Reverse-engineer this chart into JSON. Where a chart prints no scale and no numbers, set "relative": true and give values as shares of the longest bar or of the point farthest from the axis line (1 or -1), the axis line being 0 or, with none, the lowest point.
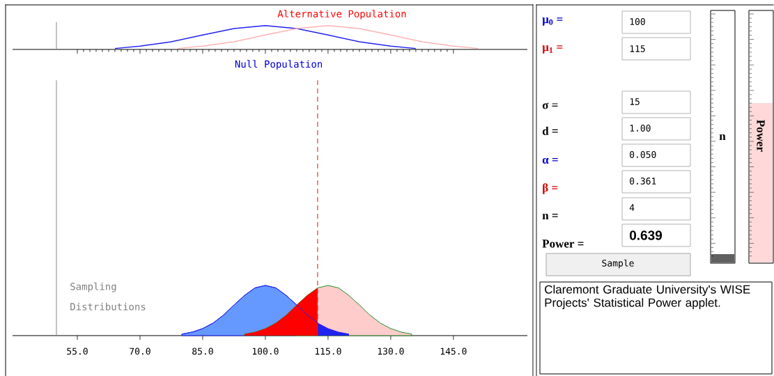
{
  "chart_data": [
    {
      "type": "line",
      "relative": true,
      "xlim": [
        39.5,
        162.7
      ],
      "tick_labels": false,
      "xticks": [
        {
          "value": 55,
          "label": null
        },
        {
          "value": 70,
          "label": null
        },
        {
          "value": 85,
          "label": null
        },
        {
          "value": 100,
          "label": null
        },
        {
          "value": 115,
          "label": null
        },
        {
          "value": 130,
          "label": null
        },
        {
          "value": 145,
          "label": null
        }
      ],
      "series": [
        {
          "color": "#2222ee",
          "x": [
            64,
            70,
            77.5,
            85,
            92.5,
            100,
            107.5,
            115,
            122.5,
            130,
            136
          ],
          "values": [
            0.04,
            0.14,
            0.32,
            0.61,
            0.88,
            1,
            0.88,
            0.61,
            0.32,
            0.14,
            0.04
          ]
        },
        {
          "color": "#ffb3b3",
          "x": [
            79,
            85,
            92.5,
            100,
            107.5,
            115,
            122.5,
            130,
            137.5,
            145,
            151
          ],
          "values": [
            0.04,
            0.14,
            0.32,
            0.61,
            0.88,
            1,
            0.88,
            0.61,
            0.32,
            0.14,
            0.04
          ]
        }
      ],
      "ref_lines": [
        {
          "axis": "x",
          "value": 50,
          "color": "#888888"
        }
      ],
      "annotations": [
        "Alternative Population",
        "Null Population"
      ]
    },
    {
      "type": "area",
      "relative": true,
      "xlim": [
        39.5,
        162.7
      ],
      "tick_labels": "x",
      "xticks": [
        {
          "value": 55,
          "label": "55.0"
        },
        {
          "value": 70,
          "label": "70.0"
        },
        {
          "value": 85,
          "label": "85.0"
        },
        {
          "value": 100,
          "label": "100.0"
        },
        {
          "value": 115,
          "label": "115.0"
        },
        {
          "value": 130,
          "label": "130.0"
        },
        {
          "value": 145,
          "label": "145.0"
        }
      ],
      "series": [
        {
          "color": "#6699ff",
          "x": [
            80,
            82.5,
            85,
            87.5,
            90,
            92.5,
            95,
            97.5,
            100,
            102.5,
            105,
            107.5
          ],
          "values": [
            0.03,
            0.07,
            0.14,
            0.25,
            0.41,
            0.61,
            0.8,
            0.95,
            1,
            0.95,
            0.8,
            0.61
          ]
        },
        {
          "color": "#ffcccc",
          "x": [
            95,
            97.5,
            100,
            102.5,
            105,
            107.5,
            110,
            112.5,
            115,
            117.5,
            120,
            122.5,
            125,
            127.5,
            130,
            132.5,
            135
          ],
          "values": [
            0.03,
            0.07,
            0.14,
            0.25,
            0.41,
            0.61,
            0.8,
            0.95,
            1,
            0.95,
            0.8,
            0.61,
            0.41,
            0.25,
            0.14,
            0.07,
            0.03
          ]
        },
        {
          "color": "#ff0000",
          "x": [
            95,
            97.5,
            100,
            102.5,
            105,
            107.5,
            110,
            112.5
          ],
          "values": [
            0.03,
            0.07,
            0.14,
            0.25,
            0.41,
            0.61,
            0.8,
            0.95
          ]
        },
        {
          "color": "#2222ee",
          "x": [
            112.5,
            115,
            117.5,
            120
          ],
          "values": [
            0.25,
            0.14,
            0.07,
            0.03
          ]
        },
        {
          "type": "line",
          "color": "#2222ee",
          "x": [
            80,
            82.5,
            85,
            87.5,
            90,
            92.5,
            95,
            97.5,
            100,
            102.5,
            105,
            107.5,
            110,
            112.5,
            115,
            117.5,
            120
          ],
          "values": [
            0.03,
            0.07,
            0.14,
            0.25,
            0.41,
            0.61,
            0.8,
            0.95,
            1,
            0.95,
            0.8,
            0.61,
            0.41,
            0.25,
            0.14,
            0.07,
            0.03
          ]
        }
      ],
      "ref_lines": [
        {
          "axis": "x",
          "value": 50,
          "color": "#888888"
        },
        {
          "axis": "x",
          "value": 112.5,
          "color": "#ff0000",
          "line_style": "dashed"
        }
      ],
      "annotations": [
        "Sampling Distributions"
      ]
    },
    {
      "type": "other",
      "annotations": [
        "μ$_{0}$ =",
        "100",
        "μ$_{1}$ =",
        "115",
        "σ =",
        "15",
        "d =",
        "1.00",
        "α =",
        "0.050",
        "β =",
        "0.361",
        "n =",
        "4",
        "Power =",
        "0.639",
        "Sample",
        "n",
        "Power",
        "Claremont Graduate University's WISE Projects' Statistical Power applet."
      ]
    }
  ]
}
